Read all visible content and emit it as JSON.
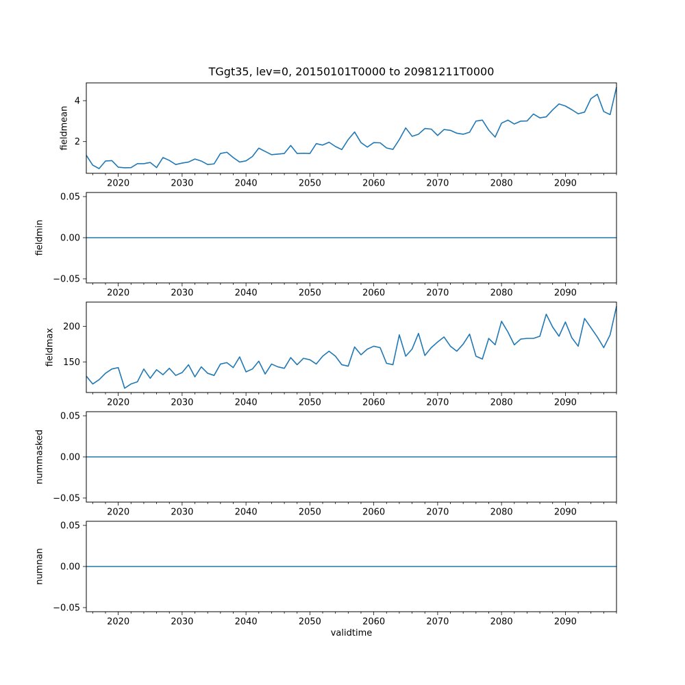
{
  "figure": {
    "title": "TGgt35, lev=0, 20150101T0000 to 20981211T0000",
    "xlabel": "validtime",
    "line_color": "#1f77b4",
    "text_color": "#000000",
    "background_color": "#ffffff"
  },
  "x_axis": {
    "xlim": [
      2015,
      2098
    ],
    "major_ticks": [
      2020,
      2030,
      2040,
      2050,
      2060,
      2070,
      2080,
      2090
    ],
    "major_tick_labels": [
      "2020",
      "2030",
      "2040",
      "2050",
      "2060",
      "2070",
      "2080",
      "2090"
    ],
    "minor_tick_step": 2
  },
  "chart_data": [
    {
      "type": "line",
      "name": "fieldmean",
      "ylabel": "fieldmean",
      "x_start": 2015,
      "x_step": 1,
      "ylim": [
        0.45,
        4.87
      ],
      "yticks": [
        {
          "value": 2,
          "label": "2"
        },
        {
          "value": 4,
          "label": "4"
        }
      ],
      "grid": false,
      "values": [
        1.33,
        0.85,
        0.68,
        1.05,
        1.07,
        0.75,
        0.72,
        0.73,
        0.92,
        0.92,
        0.98,
        0.73,
        1.22,
        1.08,
        0.88,
        0.95,
        1.0,
        1.15,
        1.05,
        0.88,
        0.91,
        1.42,
        1.48,
        1.22,
        1.0,
        1.06,
        1.27,
        1.68,
        1.52,
        1.36,
        1.39,
        1.42,
        1.81,
        1.42,
        1.43,
        1.42,
        1.9,
        1.83,
        1.97,
        1.76,
        1.61,
        2.1,
        2.47,
        1.95,
        1.73,
        1.95,
        1.94,
        1.69,
        1.62,
        2.1,
        2.67,
        2.26,
        2.36,
        2.64,
        2.61,
        2.3,
        2.59,
        2.55,
        2.41,
        2.36,
        2.46,
        3.0,
        3.05,
        2.56,
        2.22,
        2.9,
        3.05,
        2.86,
        3.0,
        3.01,
        3.35,
        3.16,
        3.21,
        3.55,
        3.84,
        3.74,
        3.56,
        3.36,
        3.44,
        4.1,
        4.31,
        3.47,
        3.32,
        4.66
      ]
    },
    {
      "type": "line",
      "name": "fieldmin",
      "ylabel": "fieldmin",
      "x_start": 2015,
      "x_step": 1,
      "constant_value": 0,
      "ylim": [
        -0.055,
        0.055
      ],
      "yticks": [
        {
          "value": -0.05,
          "label": "−0.05"
        },
        {
          "value": 0,
          "label": "0.00"
        },
        {
          "value": 0.05,
          "label": "0.05"
        }
      ],
      "grid": false
    },
    {
      "type": "line",
      "name": "fieldmax",
      "ylabel": "fieldmax",
      "x_start": 2015,
      "x_step": 1,
      "ylim": [
        107,
        234
      ],
      "yticks": [
        {
          "value": 150,
          "label": "150"
        },
        {
          "value": 200,
          "label": "200"
        }
      ],
      "grid": false,
      "values": [
        130,
        119,
        125,
        134,
        140,
        142,
        113,
        119,
        122,
        140,
        127,
        139,
        132,
        141,
        131,
        135,
        146,
        129,
        143,
        134,
        131,
        147,
        149,
        142,
        157,
        136,
        140,
        151,
        133,
        147,
        143,
        141,
        156,
        146,
        155,
        153,
        147,
        158,
        165,
        158,
        146,
        144,
        171,
        160,
        168,
        172,
        170,
        148,
        146,
        188,
        158,
        168,
        190,
        159,
        170,
        178,
        185,
        172,
        165,
        175,
        189,
        158,
        154,
        183,
        174,
        207,
        192,
        174,
        182,
        183,
        183,
        186,
        217,
        199,
        186,
        206,
        184,
        172,
        211,
        198,
        185,
        170,
        188,
        228
      ]
    },
    {
      "type": "line",
      "name": "nummasked",
      "ylabel": "nummasked",
      "x_start": 2015,
      "x_step": 1,
      "constant_value": 0,
      "ylim": [
        -0.055,
        0.055
      ],
      "yticks": [
        {
          "value": -0.05,
          "label": "−0.05"
        },
        {
          "value": 0,
          "label": "0.00"
        },
        {
          "value": 0.05,
          "label": "0.05"
        }
      ],
      "grid": false
    },
    {
      "type": "line",
      "name": "numnan",
      "ylabel": "numnan",
      "x_start": 2015,
      "x_step": 1,
      "constant_value": 0,
      "ylim": [
        -0.055,
        0.055
      ],
      "yticks": [
        {
          "value": -0.05,
          "label": "−0.05"
        },
        {
          "value": 0,
          "label": "0.00"
        },
        {
          "value": 0.05,
          "label": "0.05"
        }
      ],
      "grid": false
    }
  ]
}
